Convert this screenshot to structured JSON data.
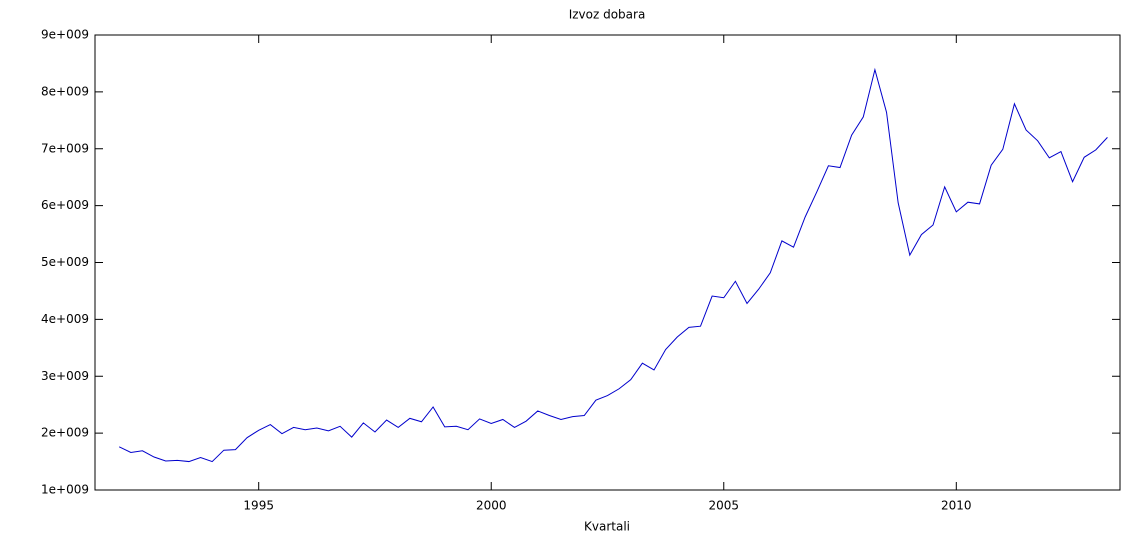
{
  "chart_data": {
    "type": "line",
    "title": "Izvoz dobara",
    "x_label": "Kvartali",
    "x": [
      1992.0,
      1992.25,
      1992.5,
      1992.75,
      1993.0,
      1993.25,
      1993.5,
      1993.75,
      1994.0,
      1994.25,
      1994.5,
      1994.75,
      1995.0,
      1995.25,
      1995.5,
      1995.75,
      1996.0,
      1996.25,
      1996.5,
      1996.75,
      1997.0,
      1997.25,
      1997.5,
      1997.75,
      1998.0,
      1998.25,
      1998.5,
      1998.75,
      1999.0,
      1999.25,
      1999.5,
      1999.75,
      2000.0,
      2000.25,
      2000.5,
      2000.75,
      2001.0,
      2001.25,
      2001.5,
      2001.75,
      2002.0,
      2002.25,
      2002.5,
      2002.75,
      2003.0,
      2003.25,
      2003.5,
      2003.75,
      2004.0,
      2004.25,
      2004.5,
      2004.75,
      2005.0,
      2005.25,
      2005.5,
      2005.75,
      2006.0,
      2006.25,
      2006.5,
      2006.75,
      2007.0,
      2007.25,
      2007.5,
      2007.75,
      2008.0,
      2008.25,
      2008.5,
      2008.75,
      2009.0,
      2009.25,
      2009.5,
      2009.75,
      2010.0,
      2010.25,
      2010.5,
      2010.75,
      2011.0,
      2011.25,
      2011.5,
      2011.75,
      2012.0,
      2012.25,
      2012.5,
      2012.75,
      2013.0,
      2013.25
    ],
    "series": [
      {
        "color": "#0000cc",
        "values": [
          1760000000.0,
          1660000000.0,
          1690000000.0,
          1580000000.0,
          1510000000.0,
          1520000000.0,
          1500000000.0,
          1570000000.0,
          1500000000.0,
          1700000000.0,
          1710000000.0,
          1920000000.0,
          2050000000.0,
          2150000000.0,
          1990000000.0,
          2100000000.0,
          2060000000.0,
          2090000000.0,
          2040000000.0,
          2120000000.0,
          1930000000.0,
          2180000000.0,
          2020000000.0,
          2230000000.0,
          2100000000.0,
          2260000000.0,
          2200000000.0,
          2460000000.0,
          2110000000.0,
          2120000000.0,
          2060000000.0,
          2250000000.0,
          2170000000.0,
          2240000000.0,
          2100000000.0,
          2210000000.0,
          2390000000.0,
          2310000000.0,
          2240000000.0,
          2290000000.0,
          2310000000.0,
          2580000000.0,
          2660000000.0,
          2780000000.0,
          2940000000.0,
          3230000000.0,
          3110000000.0,
          3470000000.0,
          3690000000.0,
          3860000000.0,
          3880000000.0,
          4410000000.0,
          4380000000.0,
          4670000000.0,
          4280000000.0,
          4530000000.0,
          4820000000.0,
          5380000000.0,
          5270000000.0,
          5800000000.0,
          6240000000.0,
          6700000000.0,
          6670000000.0,
          7240000000.0,
          7560000000.0,
          8390000000.0,
          7640000000.0,
          6050000000.0,
          5130000000.0,
          5490000000.0,
          5660000000.0,
          6330000000.0,
          5890000000.0,
          6060000000.0,
          6030000000.0,
          6710000000.0,
          6990000000.0,
          7790000000.0,
          7330000000.0,
          7140000000.0,
          6840000000.0,
          6950000000.0,
          6420000000.0,
          6850000000.0,
          6980000000.0,
          7200000000.0
        ]
      }
    ],
    "xlim": [
      1991.48,
      2013.52
    ],
    "xticks": [
      1995,
      2000,
      2005,
      2010
    ],
    "ylim": [
      1000000000.0,
      9000000000.0
    ],
    "yticks": [
      {
        "value": 1000000000.0,
        "label": "1e+009"
      },
      {
        "value": 2000000000.0,
        "label": "2e+009"
      },
      {
        "value": 3000000000.0,
        "label": "3e+009"
      },
      {
        "value": 4000000000.0,
        "label": "4e+009"
      },
      {
        "value": 5000000000.0,
        "label": "5e+009"
      },
      {
        "value": 6000000000.0,
        "label": "6e+009"
      },
      {
        "value": 7000000000.0,
        "label": "7e+009"
      },
      {
        "value": 8000000000.0,
        "label": "8e+009"
      },
      {
        "value": 9000000000.0,
        "label": "9e+009"
      }
    ]
  }
}
